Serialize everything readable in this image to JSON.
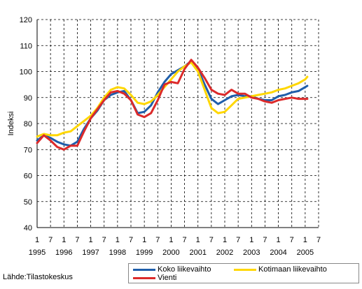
{
  "chart_data": {
    "type": "line",
    "ylabel": "Indeksi",
    "ylim": [
      40,
      120
    ],
    "yticks": [
      40,
      50,
      60,
      70,
      80,
      90,
      100,
      110,
      120
    ],
    "xlim": [
      1995.0,
      2005.5
    ],
    "grid": true,
    "x_month_labels": [
      "1",
      "7",
      "1",
      "7",
      "1",
      "7",
      "1",
      "7",
      "1",
      "7",
      "1",
      "7",
      "1",
      "7",
      "1",
      "7",
      "1",
      "7",
      "1",
      "7",
      "1",
      "7"
    ],
    "x_year_labels": [
      "1995",
      "1996",
      "1997",
      "1998",
      "1999",
      "2000",
      "2001",
      "2002",
      "2003",
      "2004",
      "2005"
    ],
    "legend_position": "bottom-right",
    "series": [
      {
        "name": "Koko liikevaihto",
        "color": "#1F5EAA",
        "points": [
          [
            1995.0,
            73.5
          ],
          [
            1995.25,
            75.5
          ],
          [
            1995.5,
            74.5
          ],
          [
            1995.75,
            73
          ],
          [
            1996.0,
            72
          ],
          [
            1996.25,
            71.5
          ],
          [
            1996.5,
            73
          ],
          [
            1996.75,
            78
          ],
          [
            1997.0,
            82
          ],
          [
            1997.25,
            85
          ],
          [
            1997.5,
            89
          ],
          [
            1997.75,
            91
          ],
          [
            1998.0,
            92
          ],
          [
            1998.25,
            92.5
          ],
          [
            1998.5,
            89
          ],
          [
            1998.75,
            84
          ],
          [
            1999.0,
            84.5
          ],
          [
            1999.25,
            87
          ],
          [
            1999.5,
            92
          ],
          [
            1999.75,
            96
          ],
          [
            2000.0,
            99
          ],
          [
            2000.25,
            100.5
          ],
          [
            2000.5,
            102
          ],
          [
            2000.75,
            104
          ],
          [
            2001.0,
            101
          ],
          [
            2001.25,
            95
          ],
          [
            2001.5,
            89.5
          ],
          [
            2001.75,
            87.5
          ],
          [
            2002.0,
            89
          ],
          [
            2002.25,
            90.5
          ],
          [
            2002.5,
            91
          ],
          [
            2002.75,
            90.5
          ],
          [
            2003.0,
            90.5
          ],
          [
            2003.25,
            89.5
          ],
          [
            2003.5,
            89
          ],
          [
            2003.75,
            89
          ],
          [
            2004.0,
            90.5
          ],
          [
            2004.25,
            91
          ],
          [
            2004.5,
            92
          ],
          [
            2004.75,
            92.5
          ],
          [
            2005.0,
            94
          ],
          [
            2005.08,
            94.5
          ]
        ]
      },
      {
        "name": "Kotimaan liikevaihto",
        "color": "#FFD700",
        "points": [
          [
            1995.0,
            75
          ],
          [
            1995.25,
            76
          ],
          [
            1995.5,
            75.5
          ],
          [
            1995.75,
            75.5
          ],
          [
            1996.0,
            76.5
          ],
          [
            1996.25,
            77
          ],
          [
            1996.5,
            79
          ],
          [
            1996.75,
            81
          ],
          [
            1997.0,
            83
          ],
          [
            1997.25,
            86
          ],
          [
            1997.5,
            90
          ],
          [
            1997.75,
            93
          ],
          [
            1998.0,
            94
          ],
          [
            1998.25,
            93.5
          ],
          [
            1998.5,
            91
          ],
          [
            1998.75,
            88
          ],
          [
            1999.0,
            87.5
          ],
          [
            1999.25,
            88.5
          ],
          [
            1999.5,
            91
          ],
          [
            1999.75,
            94
          ],
          [
            2000.0,
            97
          ],
          [
            2000.25,
            100
          ],
          [
            2000.5,
            102
          ],
          [
            2000.75,
            103.5
          ],
          [
            2001.0,
            100
          ],
          [
            2001.25,
            93
          ],
          [
            2001.5,
            86
          ],
          [
            2001.75,
            84
          ],
          [
            2002.0,
            84.5
          ],
          [
            2002.25,
            87
          ],
          [
            2002.5,
            89.5
          ],
          [
            2002.75,
            90
          ],
          [
            2003.0,
            90.5
          ],
          [
            2003.25,
            91
          ],
          [
            2003.5,
            91.5
          ],
          [
            2003.75,
            92
          ],
          [
            2004.0,
            93
          ],
          [
            2004.25,
            93.5
          ],
          [
            2004.5,
            94.5
          ],
          [
            2004.75,
            95.5
          ],
          [
            2005.0,
            97
          ],
          [
            2005.08,
            98
          ]
        ]
      },
      {
        "name": "Vienti",
        "color": "#DC2A2A",
        "points": [
          [
            1995.0,
            72.5
          ],
          [
            1995.25,
            75.5
          ],
          [
            1995.5,
            73.5
          ],
          [
            1995.75,
            71
          ],
          [
            1996.0,
            70
          ],
          [
            1996.25,
            71.5
          ],
          [
            1996.5,
            71.5
          ],
          [
            1996.75,
            77
          ],
          [
            1997.0,
            82
          ],
          [
            1997.25,
            85.5
          ],
          [
            1997.5,
            89
          ],
          [
            1997.75,
            92
          ],
          [
            1998.0,
            92.5
          ],
          [
            1998.25,
            91.5
          ],
          [
            1998.5,
            89
          ],
          [
            1998.75,
            83.5
          ],
          [
            1999.0,
            82.5
          ],
          [
            1999.25,
            84
          ],
          [
            1999.5,
            89
          ],
          [
            1999.75,
            95
          ],
          [
            2000.0,
            96
          ],
          [
            2000.25,
            95.5
          ],
          [
            2000.5,
            101
          ],
          [
            2000.75,
            104.5
          ],
          [
            2001.0,
            101.5
          ],
          [
            2001.25,
            97.5
          ],
          [
            2001.5,
            93
          ],
          [
            2001.75,
            91.5
          ],
          [
            2002.0,
            91
          ],
          [
            2002.25,
            93
          ],
          [
            2002.5,
            91.5
          ],
          [
            2002.75,
            91.5
          ],
          [
            2003.0,
            90
          ],
          [
            2003.25,
            89.5
          ],
          [
            2003.5,
            88.5
          ],
          [
            2003.75,
            88
          ],
          [
            2004.0,
            89
          ],
          [
            2004.25,
            89.5
          ],
          [
            2004.5,
            90
          ],
          [
            2004.75,
            89.5
          ],
          [
            2005.0,
            89.5
          ],
          [
            2005.08,
            89.5
          ]
        ]
      }
    ]
  },
  "source": "Lähde:Tilastokeskus"
}
